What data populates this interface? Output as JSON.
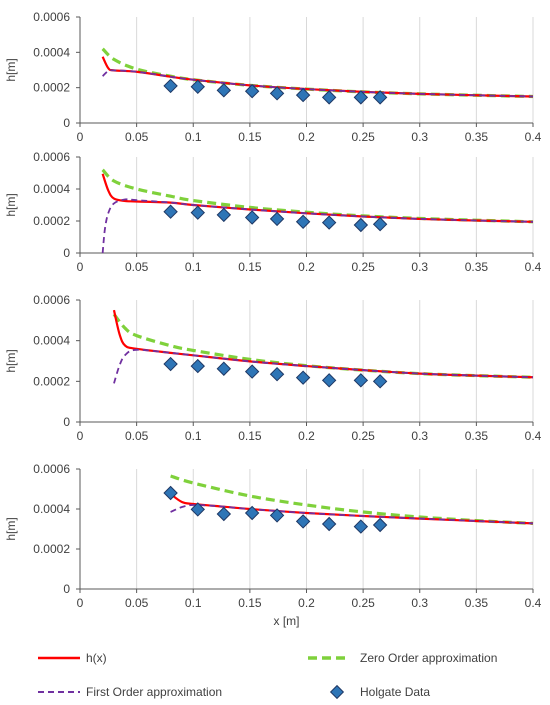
{
  "colors": {
    "h_x": "#ff0000",
    "zero_order": "#7fd13b",
    "first_order": "#7030a0",
    "holgate": "#2e75b6",
    "holgate_edge": "#1f3864",
    "axis": "#595959",
    "grid": "#d9d9d9"
  },
  "legend": {
    "h_x": "h(x)",
    "zero_order": "Zero Order approximation",
    "first_order": "First Order approximation",
    "holgate": "Holgate Data"
  },
  "chart_data": [
    {
      "type": "line",
      "xlabel": "",
      "ylabel": "h[m]",
      "xlim": [
        0,
        0.4
      ],
      "ylim": [
        0,
        0.0006
      ],
      "x_ticks": [
        "0",
        "0.05",
        "0.1",
        "0.15",
        "0.2",
        "0.25",
        "0.3",
        "0.35",
        "0.4"
      ],
      "y_ticks": [
        "0",
        "0.0002",
        "0.0004",
        "0.0006"
      ],
      "grid": "vertical",
      "series": [
        {
          "key": "zero_order",
          "x": [
            0.02,
            0.03,
            0.05,
            0.08,
            0.1,
            0.15,
            0.2,
            0.25,
            0.3,
            0.35,
            0.4
          ],
          "y": [
            0.00042,
            0.00036,
            0.000305,
            0.000265,
            0.000245,
            0.000213,
            0.000192,
            0.000176,
            0.000165,
            0.000157,
            0.00015
          ]
        },
        {
          "key": "h_x",
          "x": [
            0.02,
            0.025,
            0.03,
            0.05,
            0.08,
            0.1,
            0.15,
            0.2,
            0.25,
            0.3,
            0.35,
            0.4
          ],
          "y": [
            0.000375,
            0.00031,
            0.000298,
            0.00029,
            0.000262,
            0.000245,
            0.000213,
            0.000192,
            0.000176,
            0.000165,
            0.000157,
            0.00015
          ]
        },
        {
          "key": "first_order",
          "x": [
            0.02,
            0.025,
            0.03,
            0.05,
            0.08,
            0.1,
            0.15,
            0.2,
            0.25,
            0.3,
            0.35,
            0.4
          ],
          "y": [
            0.000265,
            0.000295,
            0.000298,
            0.00029,
            0.000262,
            0.000245,
            0.000213,
            0.000192,
            0.000176,
            0.000165,
            0.000157,
            0.00015
          ]
        },
        {
          "key": "holgate",
          "x": [
            0.08,
            0.104,
            0.127,
            0.152,
            0.174,
            0.197,
            0.22,
            0.248,
            0.265
          ],
          "y": [
            0.00021,
            0.000205,
            0.000185,
            0.00018,
            0.000168,
            0.000158,
            0.000145,
            0.000145,
            0.000145
          ]
        }
      ]
    },
    {
      "type": "line",
      "xlabel": "",
      "ylabel": "h[m]",
      "xlim": [
        0,
        0.4
      ],
      "ylim": [
        0,
        0.0006
      ],
      "x_ticks": [
        "0",
        "0.05",
        "0.1",
        "0.15",
        "0.2",
        "0.25",
        "0.3",
        "0.35",
        "0.4"
      ],
      "y_ticks": [
        "0",
        "0.0002",
        "0.0004",
        "0.0006"
      ],
      "grid": "vertical",
      "series": [
        {
          "key": "zero_order",
          "x": [
            0.02,
            0.03,
            0.05,
            0.08,
            0.1,
            0.15,
            0.2,
            0.25,
            0.3,
            0.35,
            0.4
          ],
          "y": [
            0.00052,
            0.00045,
            0.0004,
            0.000355,
            0.000328,
            0.000285,
            0.000255,
            0.000232,
            0.000216,
            0.000205,
            0.000195
          ]
        },
        {
          "key": "h_x",
          "x": [
            0.02,
            0.025,
            0.03,
            0.04,
            0.05,
            0.08,
            0.1,
            0.15,
            0.2,
            0.25,
            0.3,
            0.35,
            0.4
          ],
          "y": [
            0.000495,
            0.00039,
            0.00034,
            0.000325,
            0.000322,
            0.000315,
            0.0003,
            0.000272,
            0.000248,
            0.000228,
            0.000213,
            0.000203,
            0.000195
          ]
        },
        {
          "key": "first_order",
          "x": [
            0.02,
            0.022,
            0.025,
            0.03,
            0.04,
            0.05,
            0.08,
            0.1,
            0.15,
            0.2,
            0.25,
            0.3,
            0.35,
            0.4
          ],
          "y": [
            0.0,
            0.00015,
            0.00025,
            0.00031,
            0.000335,
            0.00033,
            0.000315,
            0.0003,
            0.000272,
            0.000248,
            0.000228,
            0.000213,
            0.000203,
            0.000195
          ]
        },
        {
          "key": "holgate",
          "x": [
            0.08,
            0.104,
            0.127,
            0.152,
            0.174,
            0.197,
            0.22,
            0.248,
            0.265
          ],
          "y": [
            0.000258,
            0.000252,
            0.000238,
            0.000222,
            0.000213,
            0.000195,
            0.00019,
            0.000175,
            0.00018
          ]
        }
      ]
    },
    {
      "type": "line",
      "xlabel": "",
      "ylabel": "h[m]",
      "xlim": [
        0,
        0.4
      ],
      "ylim": [
        0,
        0.0006
      ],
      "x_ticks": [
        "0",
        "0.05",
        "0.1",
        "0.15",
        "0.2",
        "0.25",
        "0.3",
        "0.35",
        "0.4"
      ],
      "y_ticks": [
        "0",
        "0.0002",
        "0.0004",
        "0.0006"
      ],
      "grid": "vertical",
      "series": [
        {
          "key": "zero_order",
          "x": [
            0.03,
            0.04,
            0.05,
            0.08,
            0.1,
            0.15,
            0.2,
            0.25,
            0.3,
            0.35,
            0.4
          ],
          "y": [
            0.00053,
            0.00046,
            0.000425,
            0.000375,
            0.000352,
            0.000308,
            0.000277,
            0.000255,
            0.000238,
            0.000228,
            0.00022
          ]
        },
        {
          "key": "h_x",
          "x": [
            0.03,
            0.035,
            0.04,
            0.05,
            0.08,
            0.1,
            0.15,
            0.2,
            0.25,
            0.3,
            0.35,
            0.4
          ],
          "y": [
            0.00055,
            0.00043,
            0.000375,
            0.00036,
            0.00034,
            0.000328,
            0.000298,
            0.000275,
            0.000255,
            0.000238,
            0.000228,
            0.00022
          ]
        },
        {
          "key": "first_order",
          "x": [
            0.03,
            0.035,
            0.04,
            0.05,
            0.08,
            0.1,
            0.15,
            0.2,
            0.25,
            0.3,
            0.35,
            0.4
          ],
          "y": [
            0.00019,
            0.00028,
            0.00033,
            0.000355,
            0.00034,
            0.000328,
            0.000298,
            0.000275,
            0.000255,
            0.000238,
            0.000228,
            0.00022
          ]
        },
        {
          "key": "holgate",
          "x": [
            0.08,
            0.104,
            0.127,
            0.152,
            0.174,
            0.197,
            0.22,
            0.248,
            0.265
          ],
          "y": [
            0.000285,
            0.000275,
            0.000262,
            0.000248,
            0.000235,
            0.000218,
            0.000205,
            0.000205,
            0.0002
          ]
        }
      ]
    },
    {
      "type": "line",
      "xlabel": "x [m]",
      "ylabel": "h[m]",
      "xlim": [
        0,
        0.4
      ],
      "ylim": [
        0,
        0.0006
      ],
      "x_ticks": [
        "0",
        "0.05",
        "0.1",
        "0.15",
        "0.2",
        "0.25",
        "0.3",
        "0.35",
        "0.4"
      ],
      "y_ticks": [
        "0",
        "0.0002",
        "0.0004",
        "0.0006"
      ],
      "grid": "vertical",
      "series": [
        {
          "key": "zero_order",
          "x": [
            0.08,
            0.1,
            0.15,
            0.2,
            0.25,
            0.3,
            0.35,
            0.4
          ],
          "y": [
            0.000565,
            0.00053,
            0.000465,
            0.00042,
            0.000385,
            0.00036,
            0.000342,
            0.000328
          ]
        },
        {
          "key": "h_x",
          "x": [
            0.08,
            0.09,
            0.1,
            0.12,
            0.15,
            0.2,
            0.25,
            0.3,
            0.35,
            0.4
          ],
          "y": [
            0.000475,
            0.000435,
            0.000425,
            0.000415,
            0.0004,
            0.00038,
            0.000365,
            0.000352,
            0.00034,
            0.000328
          ]
        },
        {
          "key": "first_order",
          "x": [
            0.08,
            0.09,
            0.1,
            0.12,
            0.15,
            0.2,
            0.25,
            0.3,
            0.35,
            0.4
          ],
          "y": [
            0.000385,
            0.00041,
            0.00042,
            0.000415,
            0.0004,
            0.00038,
            0.000365,
            0.000352,
            0.00034,
            0.000328
          ]
        },
        {
          "key": "holgate",
          "x": [
            0.08,
            0.104,
            0.127,
            0.152,
            0.174,
            0.197,
            0.22,
            0.248,
            0.265
          ],
          "y": [
            0.00048,
            0.000398,
            0.000375,
            0.00038,
            0.000368,
            0.000338,
            0.000325,
            0.000312,
            0.00032
          ]
        }
      ]
    }
  ]
}
